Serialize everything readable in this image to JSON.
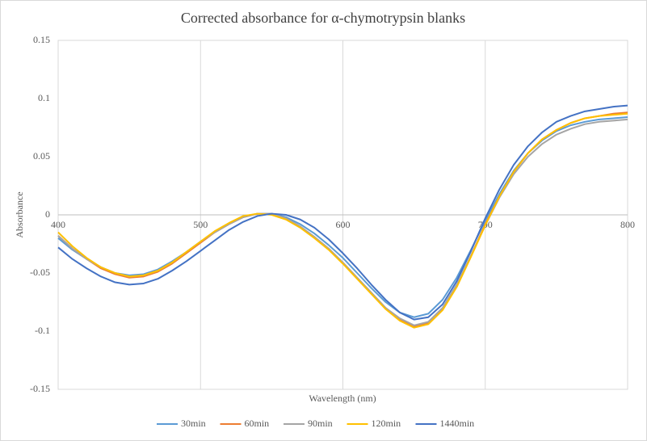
{
  "chart_data": {
    "type": "line",
    "title": "Corrected absorbance for α-chymotrypsin blanks",
    "x_label": "Wavelength (nm)",
    "y_label": "Absorbance",
    "x": [
      400,
      410,
      420,
      430,
      440,
      450,
      460,
      470,
      480,
      490,
      500,
      510,
      520,
      530,
      540,
      550,
      560,
      570,
      580,
      590,
      600,
      610,
      620,
      630,
      640,
      650,
      660,
      670,
      680,
      690,
      700,
      710,
      720,
      730,
      740,
      750,
      760,
      770,
      780,
      790,
      800
    ],
    "series": [
      {
        "name": "30min",
        "color": "#5b9bd5",
        "values": [
          -0.02,
          -0.03,
          -0.038,
          -0.045,
          -0.05,
          -0.052,
          -0.051,
          -0.047,
          -0.04,
          -0.032,
          -0.023,
          -0.015,
          -0.008,
          -0.002,
          0.001,
          0.001,
          -0.002,
          -0.008,
          -0.016,
          -0.026,
          -0.037,
          -0.05,
          -0.063,
          -0.075,
          -0.084,
          -0.088,
          -0.085,
          -0.073,
          -0.054,
          -0.03,
          -0.005,
          0.018,
          0.038,
          0.053,
          0.064,
          0.072,
          0.077,
          0.08,
          0.082,
          0.083,
          0.084
        ]
      },
      {
        "name": "60min",
        "color": "#ed7d31",
        "values": [
          -0.018,
          -0.029,
          -0.038,
          -0.046,
          -0.051,
          -0.054,
          -0.053,
          -0.049,
          -0.042,
          -0.033,
          -0.024,
          -0.015,
          -0.008,
          -0.002,
          0.001,
          0.001,
          -0.003,
          -0.01,
          -0.019,
          -0.029,
          -0.041,
          -0.054,
          -0.067,
          -0.08,
          -0.09,
          -0.096,
          -0.093,
          -0.081,
          -0.061,
          -0.035,
          -0.008,
          0.016,
          0.037,
          0.053,
          0.065,
          0.073,
          0.079,
          0.083,
          0.085,
          0.087,
          0.088
        ]
      },
      {
        "name": "90min",
        "color": "#a5a5a5",
        "values": [
          -0.018,
          -0.029,
          -0.038,
          -0.045,
          -0.05,
          -0.053,
          -0.052,
          -0.048,
          -0.041,
          -0.032,
          -0.023,
          -0.015,
          -0.008,
          -0.002,
          0.001,
          0.001,
          -0.003,
          -0.01,
          -0.019,
          -0.029,
          -0.041,
          -0.054,
          -0.067,
          -0.08,
          -0.089,
          -0.095,
          -0.092,
          -0.08,
          -0.06,
          -0.035,
          -0.009,
          0.015,
          0.035,
          0.05,
          0.061,
          0.069,
          0.074,
          0.078,
          0.08,
          0.081,
          0.082
        ]
      },
      {
        "name": "120min",
        "color": "#ffc000",
        "values": [
          -0.015,
          -0.027,
          -0.037,
          -0.045,
          -0.05,
          -0.053,
          -0.052,
          -0.048,
          -0.041,
          -0.032,
          -0.023,
          -0.014,
          -0.007,
          -0.001,
          0.001,
          0.0,
          -0.004,
          -0.011,
          -0.02,
          -0.03,
          -0.042,
          -0.055,
          -0.068,
          -0.081,
          -0.091,
          -0.097,
          -0.094,
          -0.082,
          -0.062,
          -0.036,
          -0.009,
          0.016,
          0.037,
          0.053,
          0.065,
          0.073,
          0.079,
          0.083,
          0.085,
          0.086,
          0.087
        ]
      },
      {
        "name": "1440min",
        "color": "#4472c4",
        "values": [
          -0.028,
          -0.038,
          -0.046,
          -0.053,
          -0.058,
          -0.06,
          -0.059,
          -0.055,
          -0.048,
          -0.04,
          -0.031,
          -0.022,
          -0.013,
          -0.006,
          -0.001,
          0.001,
          0.0,
          -0.004,
          -0.011,
          -0.021,
          -0.033,
          -0.046,
          -0.06,
          -0.073,
          -0.084,
          -0.09,
          -0.088,
          -0.077,
          -0.057,
          -0.031,
          -0.003,
          0.022,
          0.043,
          0.059,
          0.071,
          0.08,
          0.085,
          0.089,
          0.091,
          0.093,
          0.094
        ]
      }
    ],
    "xlim": [
      400,
      800
    ],
    "xticks": [
      400,
      500,
      600,
      700,
      800
    ],
    "ylim": [
      -0.15,
      0.15
    ],
    "yticks": [
      -0.15,
      -0.1,
      -0.05,
      0,
      0.05,
      0.1,
      0.15
    ],
    "grid": "x",
    "legend": "bottom"
  }
}
